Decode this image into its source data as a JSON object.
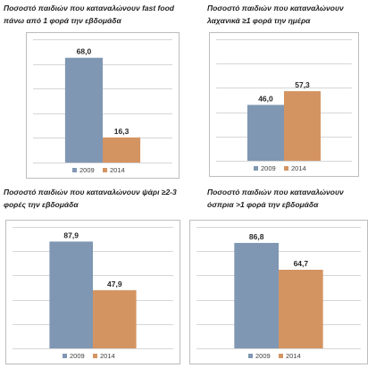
{
  "colors": {
    "y2009": "#7f97b2",
    "y2014": "#d49462"
  },
  "legend": [
    "2009",
    "2014"
  ],
  "chart_data": [
    {
      "type": "bar",
      "title_lines": [
        "Ποσοστό παιδιών που καταναλώνουν fast food",
        "πάνω από 1 φορά την εβδομάδα"
      ],
      "categories": [
        "Ποσοστό"
      ],
      "series": [
        {
          "name": "2009",
          "values": [
            68.0
          ],
          "labels": [
            "68,0"
          ]
        },
        {
          "name": "2014",
          "values": [
            16.3
          ],
          "labels": [
            "16,3"
          ]
        }
      ],
      "ylim": [
        0,
        80
      ],
      "grid": true,
      "legend_position": "bottom"
    },
    {
      "type": "bar",
      "title_lines": [
        "Ποσοστό παιδιών που καταναλώνουν",
        "λαχανικά ≥1 φορά την ημέρα"
      ],
      "categories": [
        "Ποσοστό"
      ],
      "series": [
        {
          "name": "2009",
          "values": [
            46.0
          ],
          "labels": [
            "46,0"
          ]
        },
        {
          "name": "2014",
          "values": [
            57.3
          ],
          "labels": [
            "57,3"
          ]
        }
      ],
      "ylim": [
        0,
        100
      ],
      "grid": true,
      "legend_position": "bottom"
    },
    {
      "type": "bar",
      "title_lines": [
        "Ποσοστό παιδιών που καταναλώνουν ψάρι ≥2-3",
        "φορές την εβδομάδα"
      ],
      "categories": [
        "Ποσοστό"
      ],
      "series": [
        {
          "name": "2009",
          "values": [
            87.9
          ],
          "labels": [
            "87,9"
          ]
        },
        {
          "name": "2014",
          "values": [
            47.9
          ],
          "labels": [
            "47,9"
          ]
        }
      ],
      "ylim": [
        0,
        100
      ],
      "grid": true,
      "legend_position": "bottom"
    },
    {
      "type": "bar",
      "title_lines": [
        "Ποσοστό παιδιών που καταναλώνουν",
        "όσπρια >1 φορά την εβδομάδα"
      ],
      "categories": [
        "Ποσοστό"
      ],
      "series": [
        {
          "name": "2009",
          "values": [
            86.8
          ],
          "labels": [
            "86,8"
          ]
        },
        {
          "name": "2014",
          "values": [
            64.7
          ],
          "labels": [
            "64,7"
          ]
        }
      ],
      "ylim": [
        0,
        100
      ],
      "grid": true,
      "legend_position": "bottom"
    }
  ]
}
